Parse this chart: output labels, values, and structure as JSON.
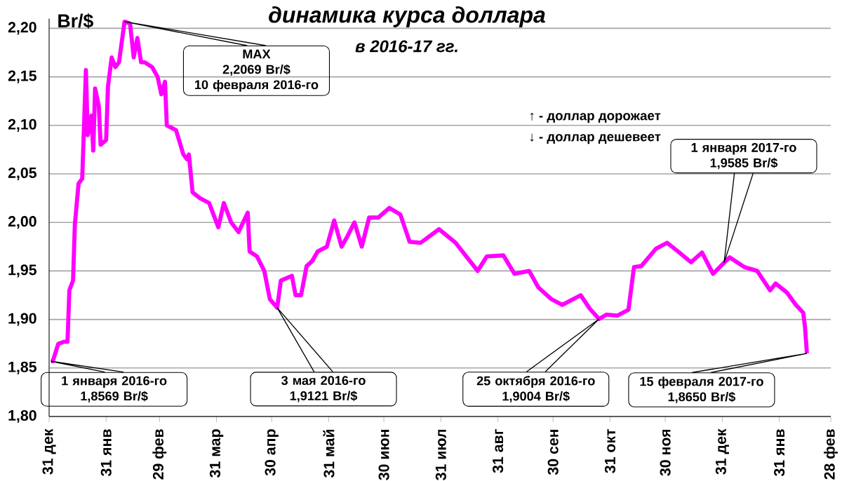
{
  "chart_data": {
    "type": "line",
    "title": "динамика курса доллара",
    "subtitle": "в 2016-17 гг.",
    "ylabel": "Br/$",
    "color": "#ff00ff",
    "grid": "y",
    "xlim": [
      "2015-12-31",
      "2017-02-28"
    ],
    "ylim": [
      1.8,
      2.21
    ],
    "xticks": [
      {
        "value": "2015-12-31",
        "label": "31 дек"
      },
      {
        "value": "2016-01-31",
        "label": "31 янв"
      },
      {
        "value": "2016-02-29",
        "label": "29 фев"
      },
      {
        "value": "2016-03-31",
        "label": "31 мар"
      },
      {
        "value": "2016-04-30",
        "label": "30 апр"
      },
      {
        "value": "2016-05-31",
        "label": "31 май"
      },
      {
        "value": "2016-06-30",
        "label": "30 июн"
      },
      {
        "value": "2016-07-31",
        "label": "31 июл"
      },
      {
        "value": "2016-08-31",
        "label": "31 авг"
      },
      {
        "value": "2016-09-30",
        "label": "30 сен"
      },
      {
        "value": "2016-10-31",
        "label": "31 окт"
      },
      {
        "value": "2016-11-30",
        "label": "30 ноя"
      },
      {
        "value": "2016-12-31",
        "label": "31 дек"
      },
      {
        "value": "2017-01-31",
        "label": "31 янв"
      },
      {
        "value": "2017-02-28",
        "label": "28 фев"
      }
    ],
    "yticks": [
      {
        "value": 1.8,
        "label": "1,80"
      },
      {
        "value": 1.85,
        "label": "1,85"
      },
      {
        "value": 1.9,
        "label": "1,90"
      },
      {
        "value": 1.95,
        "label": "1,95"
      },
      {
        "value": 2.0,
        "label": "2,00"
      },
      {
        "value": 2.05,
        "label": "2,05"
      },
      {
        "value": 2.1,
        "label": "2,10"
      },
      {
        "value": 2.15,
        "label": "2,15"
      },
      {
        "value": 2.2,
        "label": "2,20"
      }
    ],
    "x": [
      "2016-01-01",
      "2016-01-02",
      "2016-01-05",
      "2016-01-08",
      "2016-01-10",
      "2016-01-11",
      "2016-01-13",
      "2016-01-14",
      "2016-01-16",
      "2016-01-18",
      "2016-01-20",
      "2016-01-21",
      "2016-01-23",
      "2016-01-24",
      "2016-01-25",
      "2016-01-27",
      "2016-01-28",
      "2016-01-31",
      "2016-02-01",
      "2016-02-03",
      "2016-02-05",
      "2016-02-07",
      "2016-02-10",
      "2016-02-13",
      "2016-02-15",
      "2016-02-17",
      "2016-02-19",
      "2016-02-21",
      "2016-02-25",
      "2016-02-28",
      "2016-03-01",
      "2016-03-03",
      "2016-03-04",
      "2016-03-09",
      "2016-03-13",
      "2016-03-15",
      "2016-03-16",
      "2016-03-18",
      "2016-03-22",
      "2016-03-27",
      "2016-04-01",
      "2016-04-04",
      "2016-04-08",
      "2016-04-12",
      "2016-04-17",
      "2016-04-18",
      "2016-04-22",
      "2016-04-26",
      "2016-04-29",
      "2016-05-03",
      "2016-05-05",
      "2016-05-11",
      "2016-05-13",
      "2016-05-16",
      "2016-05-19",
      "2016-05-22",
      "2016-05-25",
      "2016-05-30",
      "2016-06-03",
      "2016-06-07",
      "2016-06-10",
      "2016-06-14",
      "2016-06-18",
      "2016-06-22",
      "2016-06-27",
      "2016-07-03",
      "2016-07-09",
      "2016-07-14",
      "2016-07-20",
      "2016-07-30",
      "2016-08-08",
      "2016-08-20",
      "2016-08-25",
      "2016-09-03",
      "2016-09-09",
      "2016-09-17",
      "2016-09-22",
      "2016-09-29",
      "2016-10-05",
      "2016-10-15",
      "2016-10-20",
      "2016-10-25",
      "2016-10-29",
      "2016-11-04",
      "2016-11-10",
      "2016-11-13",
      "2016-11-17",
      "2016-11-25",
      "2016-12-01",
      "2016-12-07",
      "2016-12-14",
      "2016-12-20",
      "2016-12-26",
      "2017-01-01",
      "2017-01-04",
      "2017-01-12",
      "2017-01-19",
      "2017-01-26",
      "2017-01-29",
      "2017-02-04",
      "2017-02-09",
      "2017-02-13",
      "2017-02-14",
      "2017-02-15"
    ],
    "values": [
      1.8569,
      1.857,
      1.875,
      1.877,
      1.877,
      1.93,
      1.94,
      1.998,
      2.04,
      2.045,
      2.157,
      2.09,
      2.11,
      2.074,
      2.138,
      2.12,
      2.08,
      2.085,
      2.14,
      2.17,
      2.16,
      2.165,
      2.2069,
      2.205,
      2.17,
      2.19,
      2.165,
      2.165,
      2.16,
      2.15,
      2.132,
      2.145,
      2.1,
      2.095,
      2.07,
      2.065,
      2.07,
      2.031,
      2.025,
      2.02,
      1.995,
      2.02,
      2.0,
      1.99,
      2.01,
      1.97,
      1.965,
      1.95,
      1.921,
      1.9121,
      1.94,
      1.945,
      1.925,
      1.925,
      1.955,
      1.96,
      1.97,
      1.975,
      2.002,
      1.975,
      1.985,
      2.0,
      1.975,
      2.005,
      2.005,
      2.015,
      2.008,
      1.98,
      1.979,
      1.993,
      1.979,
      1.95,
      1.965,
      1.966,
      1.947,
      1.95,
      1.933,
      1.921,
      1.915,
      1.925,
      1.911,
      1.9004,
      1.905,
      1.904,
      1.91,
      1.954,
      1.955,
      1.973,
      1.979,
      1.97,
      1.959,
      1.969,
      1.947,
      1.9585,
      1.964,
      1.954,
      1.95,
      1.93,
      1.937,
      1.928,
      1.915,
      1.907,
      1.892,
      1.865
    ],
    "annotations": [
      {
        "text": "MAX\n2,2069 Br/$\n10 февраля 2016-го",
        "x": "2016-02-10",
        "y": 2.2069
      },
      {
        "text": "1 января  2016-го\n1,8569 Br/$",
        "x": "2016-01-01",
        "y": 1.8569
      },
      {
        "text": "3 мая 2016-го\n1,9121 Br/$",
        "x": "2016-05-03",
        "y": 1.9121
      },
      {
        "text": "25 октября 2016-го\n1,9004 Br/$",
        "x": "2016-10-25",
        "y": 1.9004
      },
      {
        "text": "15 февраля 2017-го\n1,8650 Br/$",
        "x": "2017-02-15",
        "y": 1.865
      },
      {
        "text": "1 января  2017-го\n1,9585 Br/$",
        "x": "2017-01-01",
        "y": 1.9585
      },
      "↑ - доллар дорожает",
      "↓ - доллар дешевеет"
    ]
  }
}
